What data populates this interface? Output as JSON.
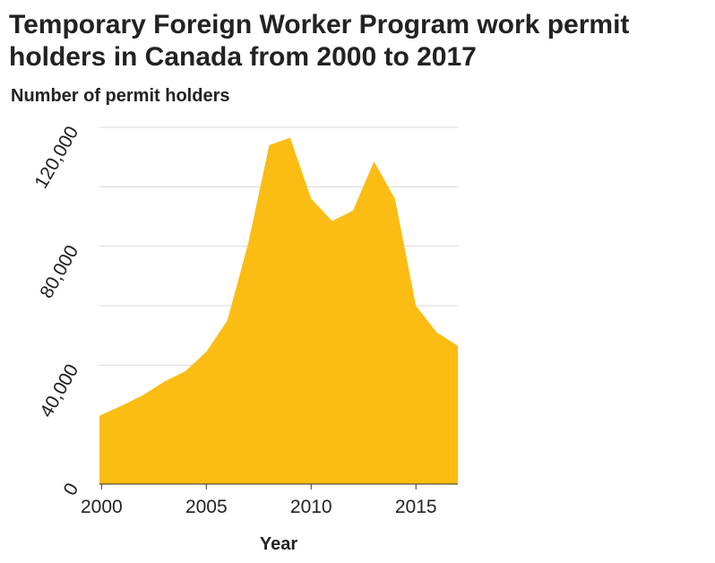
{
  "chart_data": {
    "type": "area",
    "title": "Temporary Foreign Worker Program work permit holders in Canada from 2000 to 2017",
    "xlabel": "Year",
    "ylabel": "Number of permit holders",
    "xlim": [
      1999.9,
      2017
    ],
    "ylim": [
      0,
      120000
    ],
    "x": [
      1999.9,
      2001,
      2002,
      2003,
      2004,
      2005,
      2006,
      2007,
      2008,
      2009,
      2010,
      2011,
      2012,
      2013,
      2014,
      2015,
      2016,
      2017
    ],
    "values": [
      23000,
      26500,
      30000,
      34500,
      38000,
      44500,
      55000,
      81000,
      114000,
      116500,
      96000,
      88500,
      92000,
      108500,
      96000,
      60000,
      51000,
      46500
    ],
    "x_ticks": [
      2000,
      2005,
      2010,
      2015
    ],
    "x_tick_labels": [
      "2000",
      "2005",
      "2010",
      "2015"
    ],
    "y_ticks": [
      0,
      40000,
      80000,
      120000
    ],
    "y_tick_labels": [
      "0",
      "40,000",
      "80,000",
      "120,000"
    ],
    "y_gridlines": [
      0,
      20000,
      40000,
      60000,
      80000,
      100000,
      120000
    ],
    "grid": true,
    "fill_color": "#fbbc13"
  }
}
